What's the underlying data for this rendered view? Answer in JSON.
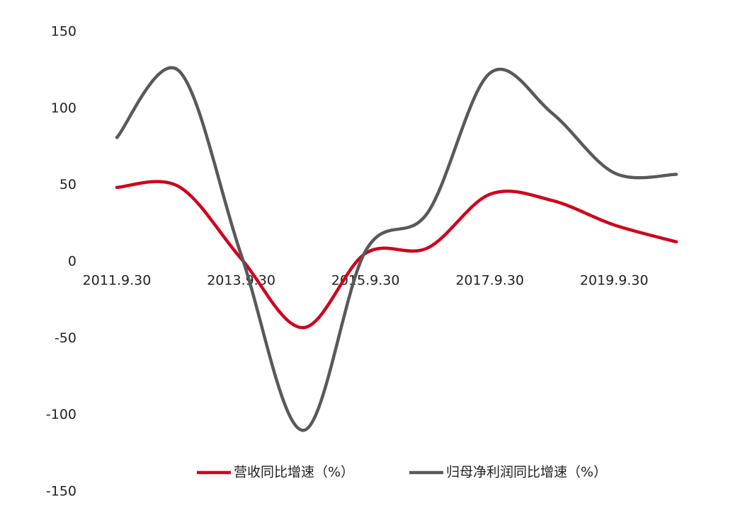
{
  "chart_data": {
    "type": "line",
    "categories": [
      "2011.9.30",
      null,
      "2013.9.30",
      null,
      "2015.9.30",
      null,
      "2017.9.30",
      null,
      "2019.9.30",
      null
    ],
    "series": [
      {
        "name": "营收同比增速（%）",
        "color": "#d0021b",
        "values": [
          48.5,
          49,
          2,
          -43,
          5.5,
          9,
          44,
          40,
          24,
          13
        ]
      },
      {
        "name": "归母净利润同比增速（%）",
        "color": "#595959",
        "values": [
          81,
          124.5,
          4.5,
          -110,
          7,
          32,
          123,
          97,
          58,
          57
        ]
      }
    ],
    "ylim": [
      -150,
      150
    ],
    "yticks": [
      -150,
      -100,
      -50,
      0,
      50,
      100,
      150
    ],
    "grid": false,
    "legend": "bottom"
  }
}
